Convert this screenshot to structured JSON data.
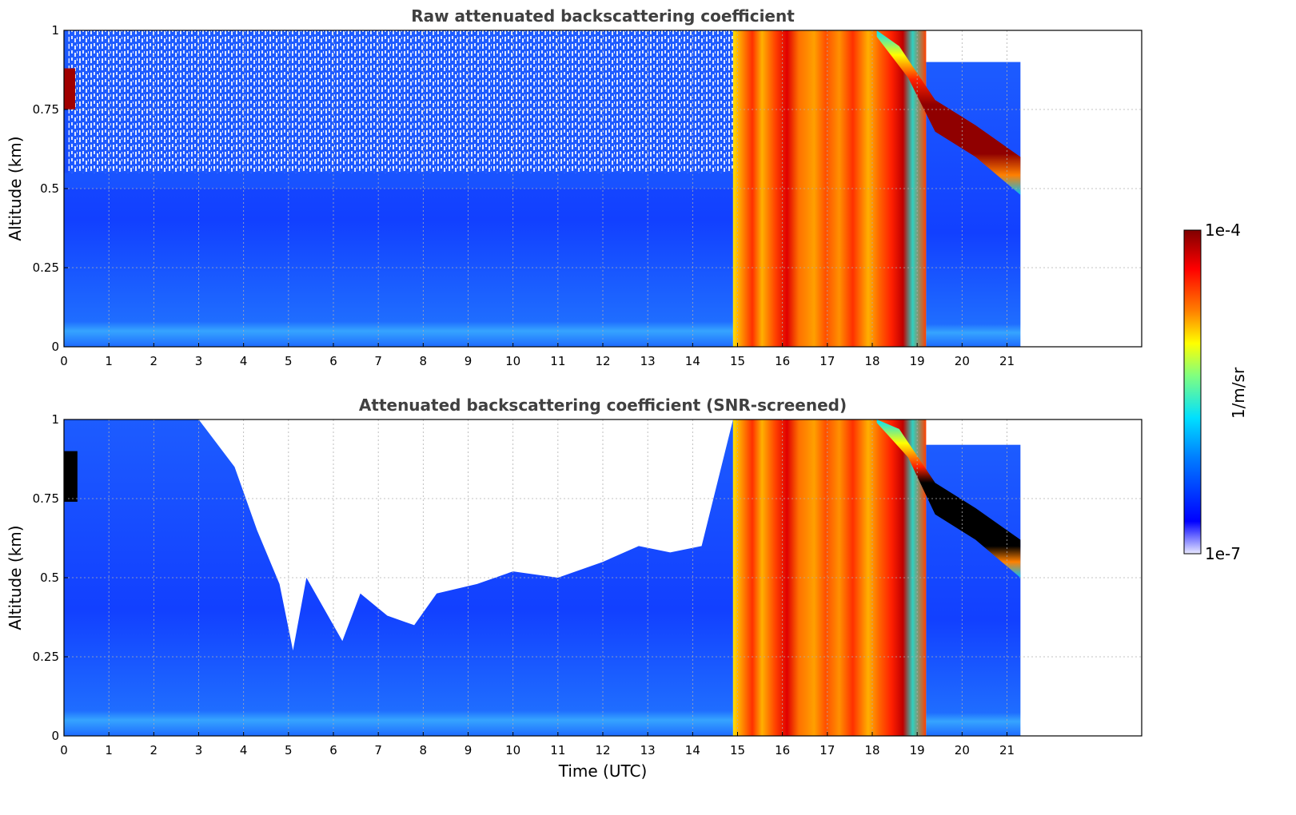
{
  "chart_data": [
    {
      "type": "heatmap",
      "title": "Raw attenuated backscattering coefficient",
      "xlabel": "",
      "ylabel": "Altitude (km)",
      "xlim": [
        0,
        24
      ],
      "ylim": [
        0,
        1
      ],
      "x_ticks": [
        "0",
        "1",
        "2",
        "3",
        "4",
        "5",
        "6",
        "7",
        "8",
        "9",
        "10",
        "11",
        "12",
        "13",
        "14",
        "15",
        "16",
        "17",
        "18",
        "19",
        "20",
        "21"
      ],
      "y_ticks": [
        "0",
        "0.25",
        "0.5",
        "0.75",
        "1"
      ],
      "grid": true,
      "data_end_time": 21.3,
      "regions": [
        {
          "time": [
            0,
            14.9
          ],
          "altitude": [
            0,
            1
          ],
          "level": "low (blue)"
        },
        {
          "time": [
            14.9,
            19.2
          ],
          "altitude": [
            0,
            1
          ],
          "level": "high (yellow-red)"
        },
        {
          "time": [
            19.2,
            21.3
          ],
          "altitude": [
            0,
            0.5
          ],
          "level": "low (blue)"
        },
        {
          "time": [
            18.5,
            21.3
          ],
          "altitude": [
            0.55,
            1
          ],
          "level": "max (dark red layer)"
        }
      ]
    },
    {
      "type": "heatmap",
      "title": "Attenuated backscattering coefficient (SNR-screened)",
      "xlabel": "Time (UTC)",
      "ylabel": "Altitude (km)",
      "xlim": [
        0,
        24
      ],
      "ylim": [
        0,
        1
      ],
      "x_ticks": [
        "0",
        "1",
        "2",
        "3",
        "4",
        "5",
        "6",
        "7",
        "8",
        "9",
        "10",
        "11",
        "12",
        "13",
        "14",
        "15",
        "16",
        "17",
        "18",
        "19",
        "20",
        "21"
      ],
      "y_ticks": [
        "0",
        "0.25",
        "0.5",
        "0.75",
        "1"
      ],
      "grid": true,
      "data_end_time": 21.3,
      "screened_top_profile": [
        [
          0,
          1
        ],
        [
          1,
          1
        ],
        [
          2,
          1
        ],
        [
          3,
          1
        ],
        [
          3.8,
          0.85
        ],
        [
          4.3,
          0.65
        ],
        [
          4.8,
          0.48
        ],
        [
          5.1,
          0.27
        ],
        [
          5.4,
          0.5
        ],
        [
          5.8,
          0.4
        ],
        [
          6.2,
          0.3
        ],
        [
          6.6,
          0.45
        ],
        [
          7.2,
          0.38
        ],
        [
          7.8,
          0.35
        ],
        [
          8.3,
          0.45
        ],
        [
          9.2,
          0.48
        ],
        [
          10,
          0.52
        ],
        [
          11,
          0.5
        ],
        [
          12,
          0.55
        ],
        [
          12.8,
          0.6
        ],
        [
          13.5,
          0.58
        ],
        [
          14.2,
          0.6
        ],
        [
          14.9,
          1
        ]
      ]
    }
  ],
  "colorbar": {
    "label": "1/m/sr",
    "max_label": "1e-4",
    "min_label": "1e-7",
    "colors": [
      "#e8e8ff",
      "#0000ff",
      "#0080ff",
      "#00e0ff",
      "#80ff80",
      "#ffff00",
      "#ff8000",
      "#ff0000",
      "#800000"
    ]
  }
}
